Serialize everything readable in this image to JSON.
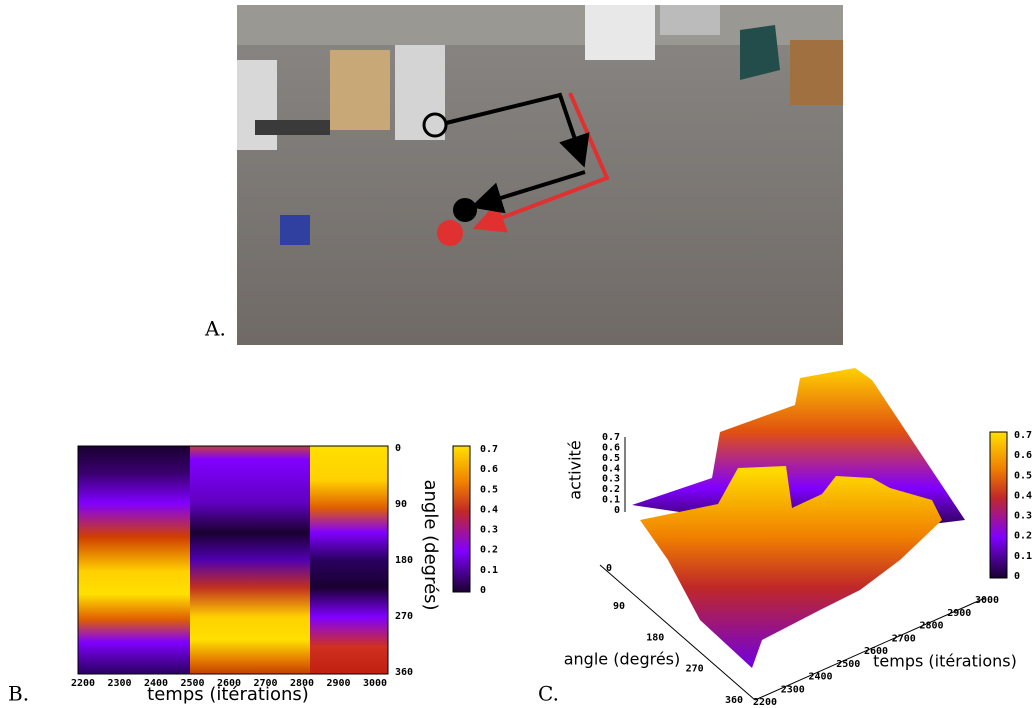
{
  "panel_a": {
    "label": "A."
  },
  "panel_b": {
    "label": "B.",
    "x_label": "temps (itérations)",
    "y_label": "angle (degrés)",
    "x_ticks": [
      2200,
      2300,
      2400,
      2500,
      2600,
      2700,
      2800,
      2900,
      3000
    ],
    "y_ticks": [
      0,
      90,
      180,
      270,
      360
    ],
    "colorbar_ticks": [
      0,
      0.1,
      0.2,
      0.3,
      0.4,
      0.5,
      0.6,
      0.7
    ]
  },
  "panel_c": {
    "label": "C.",
    "z_label": "activité",
    "z_ticks": [
      0,
      0.1,
      0.2,
      0.3,
      0.4,
      0.5,
      0.6,
      0.7
    ],
    "z_floor_tick": 0,
    "angle_label": "angle (degrés)",
    "angle_ticks": [
      90,
      180,
      270,
      360
    ],
    "time_label": "temps (itérations)",
    "time_ticks": [
      2200,
      2300,
      2400,
      2500,
      2600,
      2700,
      2800,
      2900,
      3000
    ],
    "colorbar_ticks": [
      0,
      0.1,
      0.2,
      0.3,
      0.4,
      0.5,
      0.6,
      0.7
    ]
  }
}
